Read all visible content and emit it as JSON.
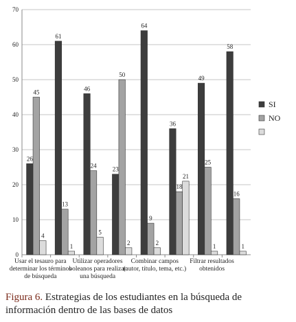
{
  "chart_data": {
    "type": "bar",
    "categories": [
      "Usar el tesauro para determinar los términos de búsqueda",
      null,
      "Utilizar operadores boleanos para realizar una búsqueda",
      null,
      "Combinar campos (autor, título, tema, etc.)",
      null,
      "Filtrar resultados obtenidos",
      null
    ],
    "series": [
      {
        "name": "SI",
        "color": "#3d3d3d",
        "values": [
          26,
          61,
          46,
          23,
          64,
          36,
          49,
          58
        ]
      },
      {
        "name": "NO",
        "color": "#a3a3a3",
        "values": [
          45,
          13,
          24,
          50,
          9,
          18,
          25,
          16
        ]
      },
      {
        "color": "#dcdcdc",
        "values": [
          4,
          1,
          5,
          2,
          2,
          21,
          1,
          1
        ]
      }
    ],
    "ylim": [
      0,
      70
    ],
    "yticks": [
      0,
      10,
      20,
      30,
      40,
      50,
      60,
      70
    ],
    "grid": true,
    "legend": "right"
  },
  "caption": {
    "label": "Figura 6.",
    "text": "Estrategias de los estudiantes en la búsqueda de información dentro de las bases de datos"
  }
}
